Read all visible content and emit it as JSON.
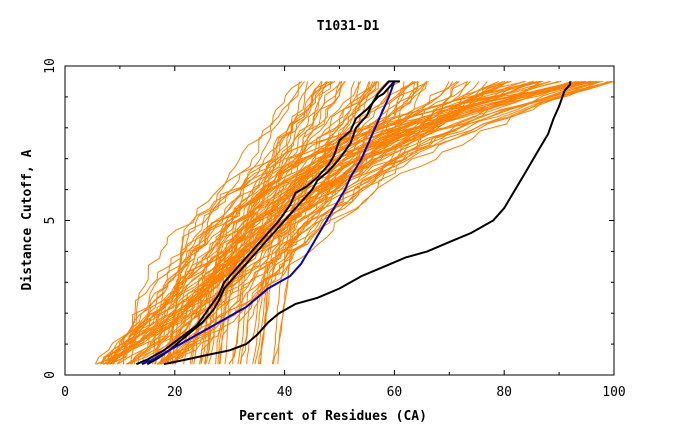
{
  "chart_data": {
    "type": "line",
    "title": "T1031-D1",
    "xlabel": "Percent of Residues (CA)",
    "ylabel": "Distance Cutoff, A",
    "xlim": [
      0,
      100
    ],
    "ylim": [
      0,
      10
    ],
    "xticks": [
      0,
      20,
      40,
      60,
      80,
      100
    ],
    "yticks": [
      0,
      5,
      10
    ],
    "x_tick_labels": [
      "0",
      "20",
      "40",
      "60",
      "80",
      "100"
    ],
    "y_tick_labels": [
      "0",
      "5",
      "10"
    ],
    "colors": {
      "models": "#ff8000",
      "highlight_black": "#000000",
      "highlight_blue": "#0000cc"
    },
    "series": [
      {
        "name": "black-1",
        "color": "#000000",
        "x": [
          13,
          15,
          18,
          21,
          24,
          26,
          28,
          29,
          31,
          33,
          35,
          37,
          39,
          41,
          42,
          44,
          46,
          48,
          49,
          50,
          52,
          53,
          55,
          56,
          57,
          58,
          59,
          60,
          61
        ],
        "y": [
          0.35,
          0.5,
          0.8,
          1.2,
          1.6,
          2.1,
          2.6,
          3.0,
          3.4,
          3.8,
          4.2,
          4.6,
          5.0,
          5.5,
          5.9,
          6.1,
          6.4,
          6.8,
          7.1,
          7.6,
          7.9,
          8.3,
          8.6,
          8.8,
          9.0,
          9.1,
          9.3,
          9.5,
          9.5
        ]
      },
      {
        "name": "black-2",
        "color": "#000000",
        "x": [
          15,
          17,
          19,
          21,
          23,
          25,
          27,
          28,
          29,
          31,
          33,
          35,
          37,
          39,
          41,
          43,
          45,
          46,
          48,
          50,
          52,
          53,
          55,
          56,
          57,
          58,
          59,
          60
        ],
        "y": [
          0.35,
          0.55,
          0.8,
          1.1,
          1.4,
          1.7,
          2.1,
          2.4,
          2.8,
          3.2,
          3.6,
          4.0,
          4.4,
          4.8,
          5.2,
          5.6,
          6.0,
          6.3,
          6.6,
          7.0,
          7.5,
          8.0,
          8.4,
          8.8,
          9.1,
          9.3,
          9.5,
          9.5
        ]
      },
      {
        "name": "black-3",
        "color": "#000000",
        "x": [
          18,
          22,
          26,
          30,
          33,
          35,
          37,
          39,
          42,
          46,
          50,
          54,
          58,
          62,
          66,
          70,
          74,
          78,
          80,
          82,
          84,
          86,
          88,
          89,
          90,
          91,
          92,
          92
        ],
        "y": [
          0.35,
          0.5,
          0.65,
          0.8,
          1.0,
          1.3,
          1.7,
          2.0,
          2.3,
          2.5,
          2.8,
          3.2,
          3.5,
          3.8,
          4.0,
          4.3,
          4.6,
          5.0,
          5.4,
          6.0,
          6.6,
          7.2,
          7.8,
          8.3,
          8.7,
          9.2,
          9.4,
          9.5
        ]
      },
      {
        "name": "blue",
        "color": "#0000cc",
        "x": [
          14,
          16,
          18,
          21,
          24,
          27,
          30,
          33,
          35,
          37,
          39,
          41,
          43,
          44,
          45,
          46,
          47,
          48,
          49,
          50,
          51,
          52,
          53,
          54,
          55,
          56,
          57,
          58,
          59,
          60
        ],
        "y": [
          0.35,
          0.5,
          0.7,
          1.0,
          1.3,
          1.6,
          1.9,
          2.2,
          2.5,
          2.8,
          3.0,
          3.2,
          3.6,
          3.9,
          4.2,
          4.5,
          4.8,
          5.1,
          5.4,
          5.7,
          6.0,
          6.4,
          6.7,
          7.0,
          7.4,
          7.8,
          8.2,
          8.6,
          9.0,
          9.5
        ]
      }
    ]
  }
}
